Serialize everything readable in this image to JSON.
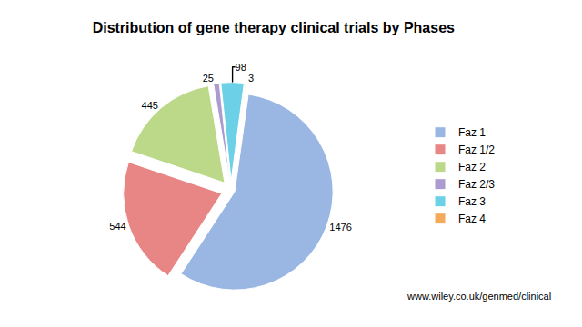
{
  "chart_data": {
    "type": "pie",
    "title": "Distribution of gene therapy clinical trials by Phases",
    "categories": [
      "Faz 1",
      "Faz 1/2",
      "Faz 2",
      "Faz 2/3",
      "Faz 3",
      "Faz 4"
    ],
    "values": [
      1476,
      544,
      445,
      25,
      98,
      3
    ],
    "colors": [
      "#9ab6e2",
      "#e88585",
      "#bcd98a",
      "#ab9bd0",
      "#6cd0e6",
      "#f5a95a"
    ],
    "data_labels": true,
    "legend": "right",
    "annotations": [
      "www.wiley.co.uk/genmed/clinical"
    ]
  }
}
